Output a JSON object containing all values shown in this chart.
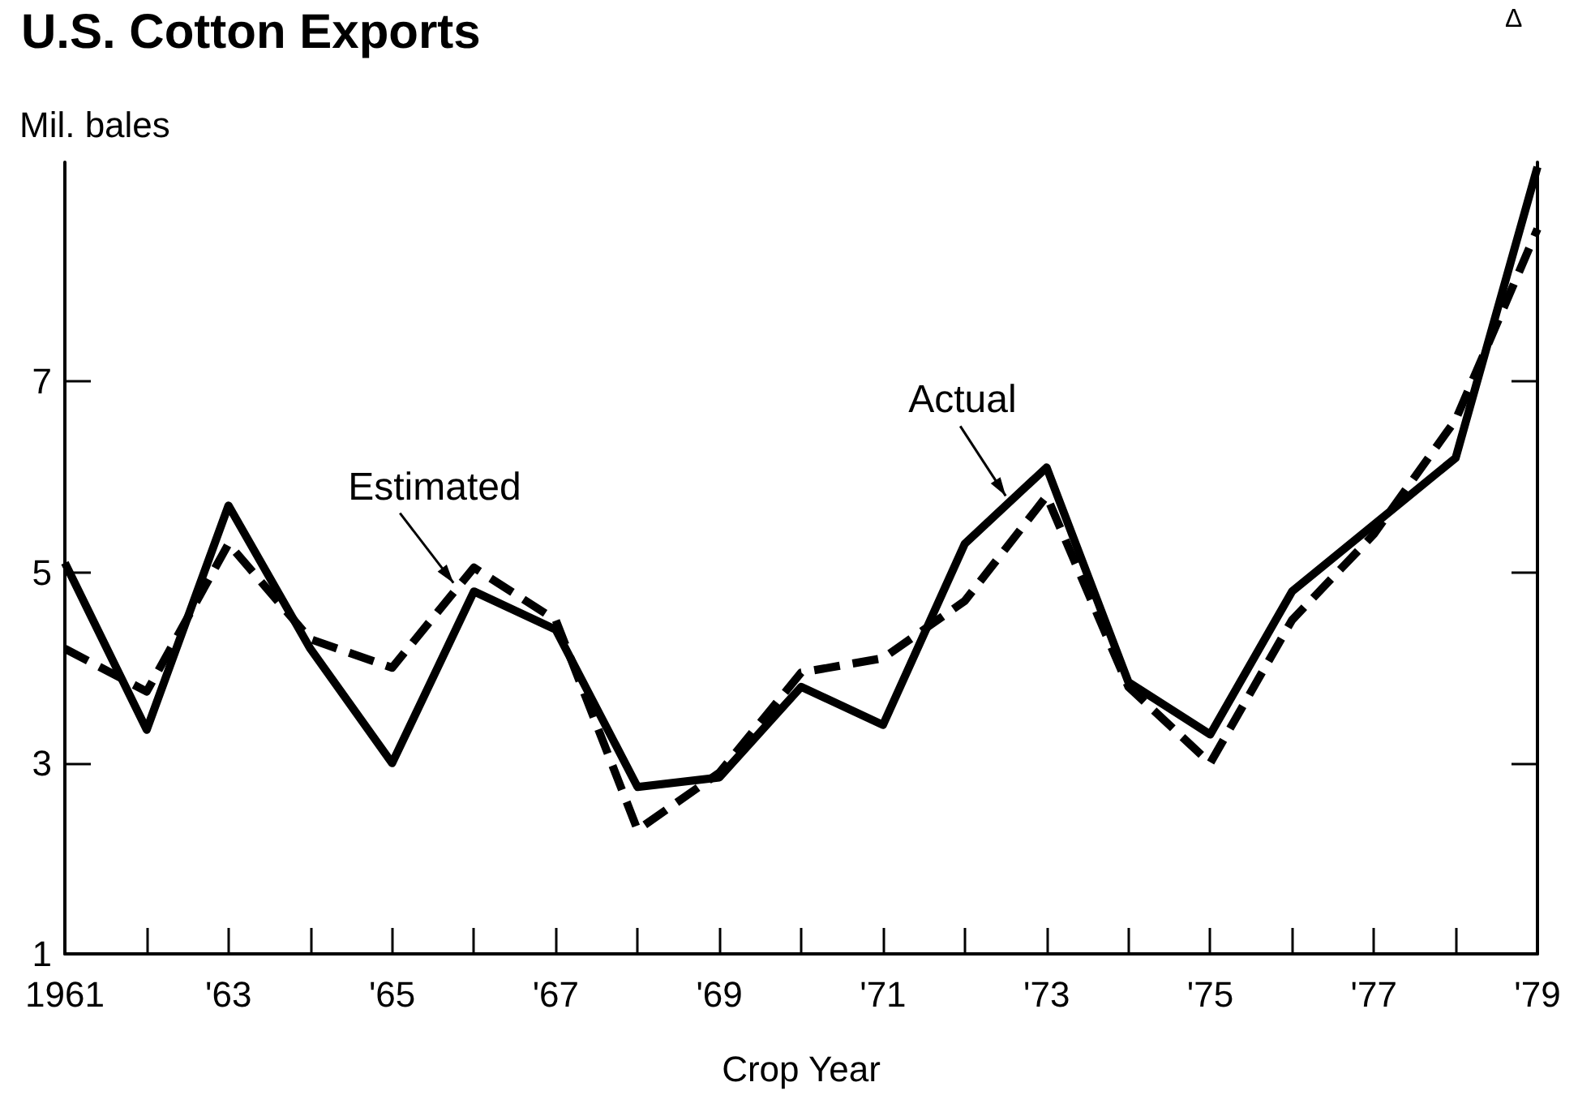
{
  "chart_data": {
    "type": "line",
    "title": "U.S. Cotton Exports",
    "ylabel": "Mil. bales",
    "xlabel": "Crop Year",
    "categories": [
      "1961",
      null,
      "'63",
      null,
      "'65",
      null,
      "'67",
      null,
      "'69",
      null,
      "'71",
      null,
      "'73",
      null,
      "'75",
      null,
      "'77",
      null,
      "'79"
    ],
    "series": [
      {
        "name": "Actual",
        "color": "#000000",
        "line_style": "solid",
        "values": [
          5.1,
          3.35,
          5.7,
          4.2,
          3.0,
          4.8,
          4.4,
          2.75,
          2.85,
          3.8,
          3.4,
          5.3,
          6.1,
          3.85,
          3.3,
          4.8,
          5.5,
          6.2,
          9.25
        ]
      },
      {
        "name": "Estimated",
        "color": "#000000",
        "line_style": "dashed",
        "values": [
          4.2,
          3.75,
          5.3,
          4.3,
          4.0,
          5.05,
          4.5,
          2.3,
          2.9,
          3.95,
          4.1,
          4.7,
          5.8,
          3.8,
          3.0,
          4.5,
          5.4,
          6.6,
          8.6
        ]
      }
    ],
    "annotations": [
      "Δ"
    ],
    "ylim": [
      1,
      9.3
    ],
    "yticks": [
      1,
      3,
      5,
      7
    ],
    "grid": false,
    "legend": false,
    "marker": "none"
  }
}
